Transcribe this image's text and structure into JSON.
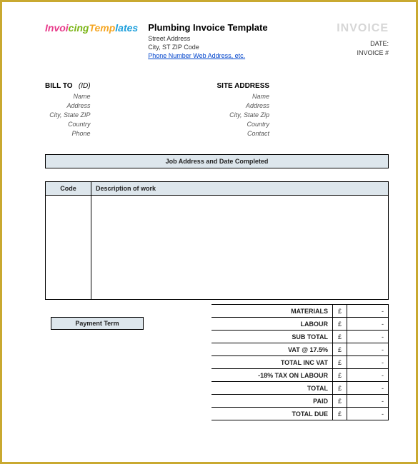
{
  "header": {
    "logo_parts": [
      "Invoi",
      "cing",
      "Temp",
      "lates"
    ],
    "title": "Plumbing Invoice Template",
    "street": "Street Address",
    "city": "City, ST  ZIP Code",
    "contact_link": "Phone Number Web Address, etc.",
    "invoice_word": "INVOICE",
    "date_label": "DATE:",
    "invoice_num_label": "INVOICE #"
  },
  "billto": {
    "header": "BILL TO",
    "id": "(ID)",
    "name": "Name",
    "address": "Address",
    "csz": "City, State ZIP",
    "country": "Country",
    "phone": "Phone"
  },
  "site": {
    "header": "SITE ADDRESS",
    "name": "Name",
    "address": "Address",
    "csz": "City, State Zip",
    "country": "Country",
    "contact": "Contact"
  },
  "job_bar": "Job Address and Date Completed",
  "work": {
    "code_header": "Code",
    "desc_header": "Description of work"
  },
  "payment_term_label": "Payment Term",
  "totals": {
    "materials": "MATERIALS",
    "labour": "LABOUR",
    "subtotal": "SUB TOTAL",
    "vat": "VAT @ 17.5%",
    "total_inc_vat": "TOTAL INC VAT",
    "tax_labour": "-18% TAX ON LABOUR",
    "total": "TOTAL",
    "paid": "PAID",
    "total_due": "TOTAL DUE",
    "currency": "£",
    "dash": "-"
  },
  "colors": {
    "border": "#c9a930",
    "header_bg": "#dde6ec",
    "link": "#0044cc"
  }
}
